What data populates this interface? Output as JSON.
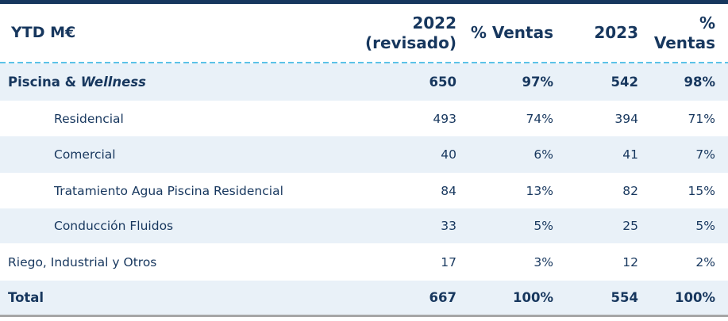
{
  "colors": {
    "navy_text": "#17375e",
    "top_bar": "#17375e",
    "row_shade": "#e9f1f8",
    "dashed_divider": "#5bc2e7",
    "bottom_border": "#a6a6a6"
  },
  "chart_data": {
    "type": "table",
    "title": "YTD M€",
    "columns": [
      {
        "line1": "2022",
        "line2": "(revisado)"
      },
      {
        "line1": "% Ventas",
        "line2": ""
      },
      {
        "line1": "2023",
        "line2": ""
      },
      {
        "line1": "%",
        "line2": "Ventas"
      }
    ],
    "rows": [
      {
        "label": "Piscina & ",
        "italic": "Wellness",
        "y2022": "650",
        "pct2022": "97%",
        "y2023": "542",
        "pct2023": "98%"
      },
      {
        "label": "Residencial",
        "italic": "",
        "y2022": "493",
        "pct2022": "74%",
        "y2023": "394",
        "pct2023": "71%"
      },
      {
        "label": "Comercial",
        "italic": "",
        "y2022": "40",
        "pct2022": "6%",
        "y2023": "41",
        "pct2023": "7%"
      },
      {
        "label": "Tratamiento Agua Piscina Residencial",
        "italic": "",
        "y2022": "84",
        "pct2022": "13%",
        "y2023": "82",
        "pct2023": "15%"
      },
      {
        "label": "Conducción Fluidos",
        "italic": "",
        "y2022": "33",
        "pct2022": "5%",
        "y2023": "25",
        "pct2023": "5%"
      },
      {
        "label": "Riego, Industrial y Otros",
        "italic": "",
        "y2022": "17",
        "pct2022": "3%",
        "y2023": "12",
        "pct2023": "2%"
      },
      {
        "label": "Total",
        "italic": "",
        "y2022": "667",
        "pct2022": "100%",
        "y2023": "554",
        "pct2023": "100%"
      }
    ]
  }
}
